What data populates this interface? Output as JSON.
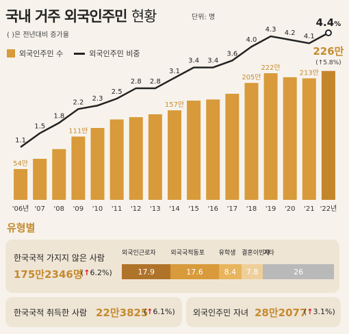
{
  "header": {
    "title_part1": "국내 거주 외국인주민",
    "title_part2": "현황",
    "unit": "단위: 명",
    "note": "( )은 전년대비 증가율"
  },
  "legend": {
    "bar_label": "외국인주민 수",
    "line_label": "외국인주민 비중"
  },
  "colors": {
    "bar": "#d89a3a",
    "bar_dark": "#c4862a",
    "line": "#222222",
    "accent": "#c58a2f",
    "up_arrow": "#dd1111"
  },
  "chart_data": {
    "type": "bar",
    "categories": [
      "'06년",
      "'07",
      "'08",
      "'09",
      "'10",
      "'11",
      "'12",
      "'13",
      "'14",
      "'15",
      "'16",
      "'17",
      "'18",
      "'19",
      "'20",
      "'21",
      "'22년"
    ],
    "series": [
      {
        "name": "외국인주민 수",
        "type": "bar",
        "values": [
          54,
          72,
          89,
          111,
          126,
          141,
          145,
          150,
          157,
          174,
          176,
          186,
          205,
          222,
          215,
          213,
          226
        ],
        "unit": "만"
      },
      {
        "name": "외국인주민 비중",
        "type": "line",
        "values": [
          1.1,
          1.5,
          1.8,
          2.2,
          2.3,
          2.5,
          2.8,
          2.8,
          3.1,
          3.4,
          3.4,
          3.6,
          4.0,
          4.3,
          4.2,
          4.1,
          4.4
        ],
        "unit": "%"
      }
    ],
    "bar_labels": {
      "0": "54만",
      "3": "111만",
      "8": "157만",
      "12": "205만",
      "13": "222만",
      "15": "213만"
    },
    "last_value_label": "226만",
    "last_growth_label": "(↑5.8%)",
    "last_share_label": "4.4",
    "last_share_unit": "%"
  },
  "by_type": {
    "title": "유형별",
    "non_citizen": {
      "label": "한국국적 가지지 않은 사람",
      "count": "175만2346명",
      "growth_arrow": "↑",
      "growth": "6.2%"
    },
    "segments": [
      {
        "name": "외국인근로자",
        "value": "17.9",
        "color": "#b0732a"
      },
      {
        "name": "외국국적동포",
        "value": "17.6",
        "color": "#d89a3a"
      },
      {
        "name": "유학생",
        "value": "8.4",
        "color": "#e8b55c"
      },
      {
        "name": "결혼이민자",
        "value": "7.8",
        "color": "#efcf99"
      },
      {
        "name": "기타",
        "value": "26",
        "color": "#b9b9b9"
      }
    ],
    "naturalized": {
      "label": "한국국적 취득한 사람",
      "count": "22만3825",
      "growth_arrow": "↑",
      "growth": "6.1%"
    },
    "children": {
      "label": "외국인주민 자녀",
      "count": "28만2077",
      "growth_arrow": "↑",
      "growth": "3.1%"
    }
  }
}
